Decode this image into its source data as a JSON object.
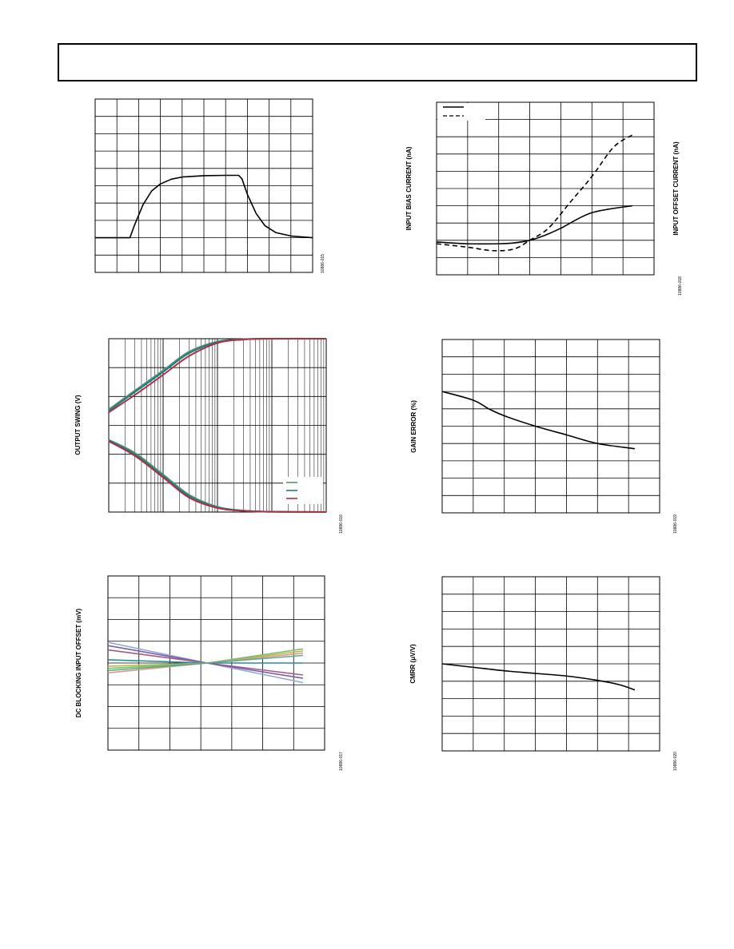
{
  "page": {
    "header": ""
  },
  "chart_data": [
    {
      "id": "step-response",
      "type": "line",
      "xlabel": "",
      "ylabel": "",
      "figure_id": "10886-015",
      "grid": true,
      "xlim": [
        0,
        10
      ],
      "ylim": [
        0,
        10
      ],
      "series": [
        {
          "name": "",
          "color": "#000000",
          "dash": "solid",
          "smooth": false,
          "x": [
            0,
            1.6,
            1.8,
            2.2,
            2.6,
            3.0,
            3.5,
            4.0,
            5.0,
            6.0,
            6.6,
            6.75,
            7.0,
            7.4,
            7.8,
            8.3,
            9.0,
            10.0
          ],
          "y": [
            2.0,
            2.0,
            2.7,
            3.9,
            4.7,
            5.1,
            5.38,
            5.5,
            5.58,
            5.6,
            5.6,
            5.4,
            4.5,
            3.4,
            2.7,
            2.3,
            2.1,
            2.0
          ]
        }
      ]
    },
    {
      "id": "bias-current-vs-temp",
      "type": "line",
      "xlabel": "",
      "ylabel": "INPUT BIAS CURRENT (nA)",
      "y2label": "INPUT OFFSET CURRENT (nA)",
      "figure_id": "10886-018",
      "grid": true,
      "xlim": [
        0,
        7
      ],
      "ylim": [
        0,
        10
      ],
      "legend": {
        "position": "top-left",
        "entries": [
          "",
          ""
        ]
      },
      "series": [
        {
          "name": "",
          "color": "#000000",
          "dash": "solid",
          "smooth": true,
          "x": [
            0,
            1,
            2,
            2.5,
            3,
            3.5,
            4,
            5,
            6.3
          ],
          "y": [
            1.9,
            1.8,
            1.8,
            1.85,
            2.0,
            2.3,
            2.7,
            3.6,
            4.0
          ]
        },
        {
          "name": "",
          "color": "#000000",
          "dash": "dashed",
          "smooth": true,
          "x": [
            0,
            1,
            1.8,
            2.5,
            3,
            3.6,
            4.3,
            5,
            5.7,
            6.3
          ],
          "y": [
            1.8,
            1.6,
            1.4,
            1.5,
            2.0,
            2.7,
            4.2,
            5.7,
            7.4,
            8.1
          ]
        }
      ]
    },
    {
      "id": "output-swing-vs-load",
      "type": "line",
      "xlabel": "",
      "ylabel": "OUTPUT SWING (V)",
      "figure_id": "10886-016",
      "grid": true,
      "xscale": "log",
      "xlim": [
        10,
        100000
      ],
      "ylim": [
        0,
        6
      ],
      "legend": {
        "position": "bottom-right",
        "entries": [
          "",
          "",
          ""
        ]
      },
      "series": [
        {
          "name": "",
          "color": "#5a8f6a",
          "dash": "solid",
          "smooth": true,
          "x": [
            10,
            30,
            100,
            300,
            1000,
            3000,
            10000,
            100000
          ],
          "y": [
            3.55,
            4.2,
            4.9,
            5.55,
            5.9,
            5.98,
            6.0,
            6.0
          ]
        },
        {
          "name": "",
          "color": "#1a7e8a",
          "dash": "solid",
          "smooth": true,
          "x": [
            10,
            30,
            100,
            300,
            1000,
            3000,
            10000,
            100000
          ],
          "y": [
            3.5,
            4.15,
            4.85,
            5.5,
            5.88,
            5.98,
            6.0,
            6.0
          ]
        },
        {
          "name": "",
          "color": "#b03040",
          "dash": "solid",
          "smooth": true,
          "x": [
            10,
            30,
            100,
            300,
            1000,
            3000,
            10000,
            100000
          ],
          "y": [
            3.45,
            4.05,
            4.75,
            5.4,
            5.85,
            5.97,
            6.0,
            6.0
          ]
        },
        {
          "name": "",
          "color": "#5a8f6a",
          "dash": "solid",
          "smooth": true,
          "x": [
            10,
            30,
            100,
            300,
            1000,
            3000,
            10000,
            100000
          ],
          "y": [
            2.5,
            2.05,
            1.3,
            0.6,
            0.18,
            0.05,
            0.01,
            0.0
          ]
        },
        {
          "name": "",
          "color": "#1a7e8a",
          "dash": "solid",
          "smooth": true,
          "x": [
            10,
            30,
            100,
            300,
            1000,
            3000,
            10000,
            100000
          ],
          "y": [
            2.48,
            2.0,
            1.25,
            0.55,
            0.16,
            0.05,
            0.01,
            0.0
          ]
        },
        {
          "name": "",
          "color": "#b03040",
          "dash": "solid",
          "smooth": true,
          "x": [
            10,
            30,
            100,
            300,
            1000,
            3000,
            10000,
            100000
          ],
          "y": [
            2.45,
            1.95,
            1.2,
            0.5,
            0.14,
            0.04,
            0.01,
            0.0
          ]
        }
      ]
    },
    {
      "id": "gain-error-vs-temp",
      "type": "line",
      "xlabel": "",
      "ylabel": "GAIN ERROR (%)",
      "figure_id": "10886-019",
      "grid": true,
      "xlim": [
        0,
        7
      ],
      "ylim": [
        0,
        10
      ],
      "series": [
        {
          "name": "",
          "color": "#000000",
          "dash": "solid",
          "smooth": true,
          "x": [
            0,
            1,
            1.5,
            2,
            3,
            4,
            5,
            6.2
          ],
          "y": [
            7.0,
            6.5,
            6.0,
            5.6,
            5.0,
            4.5,
            4.0,
            3.7
          ]
        }
      ]
    },
    {
      "id": "dc-blocking-offset-vs-temp",
      "type": "line",
      "xlabel": "",
      "ylabel": "DC BLOCKING INPUT OFFSET (mV)",
      "figure_id": "10886-017",
      "grid": true,
      "xlim": [
        0,
        7
      ],
      "ylim": [
        0,
        8
      ],
      "series": [
        {
          "name": "",
          "color": "#8fa8d8",
          "dash": "solid",
          "smooth": false,
          "x": [
            0,
            3.2,
            6.3
          ],
          "y": [
            4.95,
            4.0,
            3.1
          ]
        },
        {
          "name": "",
          "color": "#7a5ea8",
          "dash": "solid",
          "smooth": false,
          "x": [
            0,
            3.2,
            6.3
          ],
          "y": [
            4.8,
            4.0,
            3.3
          ]
        },
        {
          "name": "",
          "color": "#a05a8a",
          "dash": "solid",
          "smooth": false,
          "x": [
            0,
            3.2,
            6.3
          ],
          "y": [
            4.6,
            4.0,
            3.45
          ]
        },
        {
          "name": "",
          "color": "#2a8a9a",
          "dash": "solid",
          "smooth": false,
          "x": [
            0,
            3.2,
            6.3
          ],
          "y": [
            4.15,
            4.0,
            4.0
          ]
        },
        {
          "name": "",
          "color": "#b8b84a",
          "dash": "solid",
          "smooth": false,
          "x": [
            0,
            3.2,
            6.3
          ],
          "y": [
            3.85,
            4.0,
            4.55
          ]
        },
        {
          "name": "",
          "color": "#7abf6a",
          "dash": "solid",
          "smooth": false,
          "x": [
            0,
            3.2,
            6.3
          ],
          "y": [
            3.75,
            4.0,
            4.65
          ]
        },
        {
          "name": "",
          "color": "#d89a8a",
          "dash": "solid",
          "smooth": false,
          "x": [
            0,
            3.2,
            6.3
          ],
          "y": [
            3.55,
            4.0,
            4.45
          ]
        },
        {
          "name": "",
          "color": "#5aaa8a",
          "dash": "solid",
          "smooth": false,
          "x": [
            0,
            3.2,
            6.3
          ],
          "y": [
            3.65,
            4.0,
            4.35
          ]
        }
      ]
    },
    {
      "id": "cmrr-vs-temp",
      "type": "line",
      "xlabel": "",
      "ylabel": "CMRR (μV/V)",
      "figure_id": "10886-020",
      "grid": true,
      "xlim": [
        0,
        7
      ],
      "ylim": [
        0,
        10
      ],
      "series": [
        {
          "name": "",
          "color": "#000000",
          "dash": "solid",
          "smooth": true,
          "x": [
            0,
            1,
            2,
            3,
            4,
            5,
            5.7,
            6.2
          ],
          "y": [
            5.0,
            4.8,
            4.6,
            4.45,
            4.3,
            4.05,
            3.8,
            3.5
          ]
        }
      ]
    }
  ]
}
